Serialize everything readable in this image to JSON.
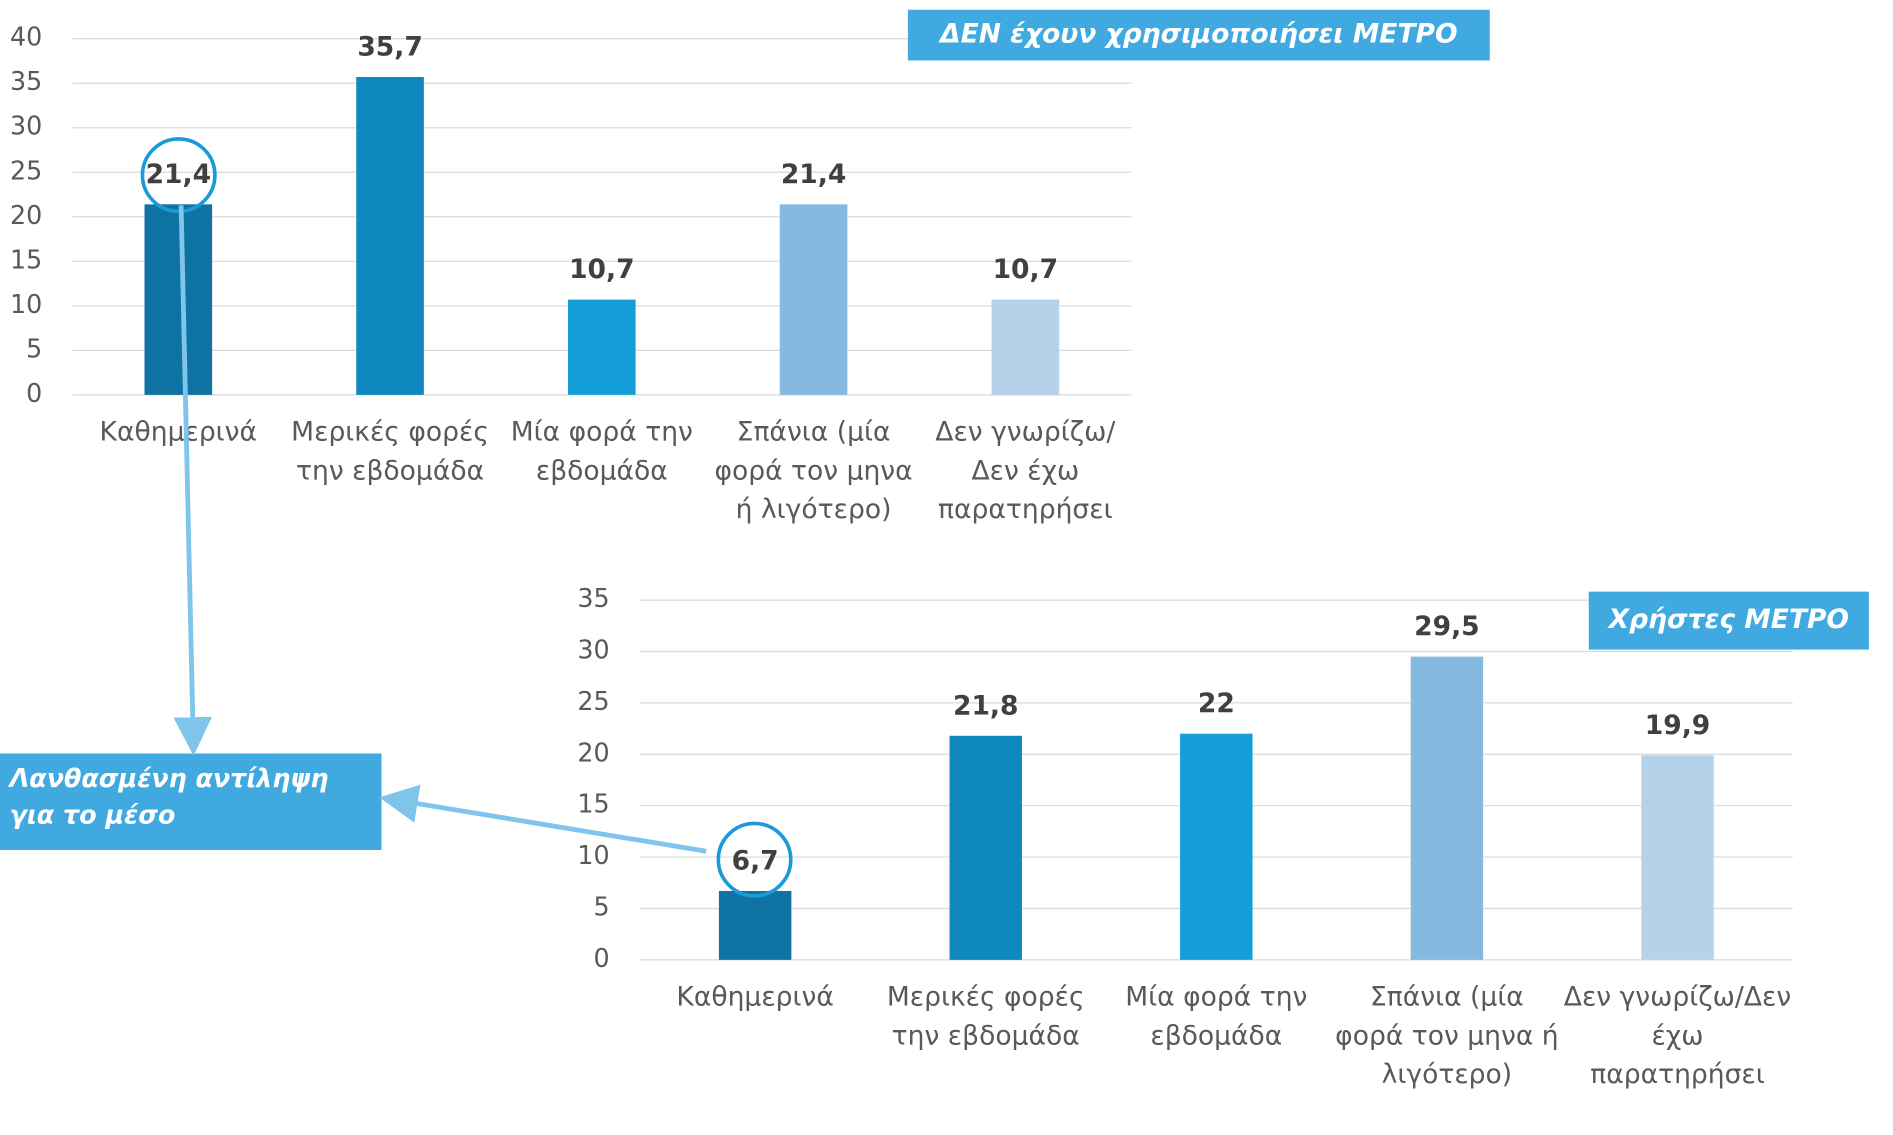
{
  "chart_data": [
    {
      "type": "bar",
      "title": "ΔΕΝ έχουν χρησιμοποιήσει ΜΕΤΡΟ",
      "categories": [
        "Καθημερινά",
        "Μερικές φορές την εβδομάδα",
        "Μία φορά την εβδομάδα",
        "Σπάνια (μία φορά τον μηνα ή λιγότερο)",
        "Δεν γνωρίζω/Δεν έχω παρατηρήσει"
      ],
      "values": [
        21.4,
        35.7,
        10.7,
        21.4,
        10.7
      ],
      "value_labels": [
        "21,4",
        "35,7",
        "10,7",
        "21,4",
        "10,7"
      ],
      "colors": [
        "#0e72a3",
        "#0f87bf",
        "#139ed8",
        "#86b9df",
        "#b5d2ea"
      ],
      "ylim": [
        0,
        40
      ],
      "yticks": [
        0,
        5,
        10,
        15,
        20,
        25,
        30,
        35,
        40
      ],
      "grid": true
    },
    {
      "type": "bar",
      "title": "Χρήστες ΜΕΤΡΟ",
      "categories": [
        "Καθημερινά",
        "Μερικές φορές την εβδομάδα",
        "Μία φορά την εβδομάδα",
        "Σπάνια (μία φορά τον μηνα ή λιγότερο)",
        "Δεν γνωρίζω/Δεν έχω παρατηρήσει"
      ],
      "values": [
        6.7,
        21.8,
        22,
        29.5,
        19.9
      ],
      "value_labels": [
        "6,7",
        "21,8",
        "22",
        "29,5",
        "19,9"
      ],
      "colors": [
        "#0e72a3",
        "#0f87bf",
        "#139ed8",
        "#86b9df",
        "#b5d2ea"
      ],
      "ylim": [
        0,
        35
      ],
      "yticks": [
        0,
        5,
        10,
        15,
        20,
        25,
        30,
        35
      ],
      "grid": true
    }
  ],
  "annotation": "Λανθασμένη αντίληψη για το μέσο"
}
